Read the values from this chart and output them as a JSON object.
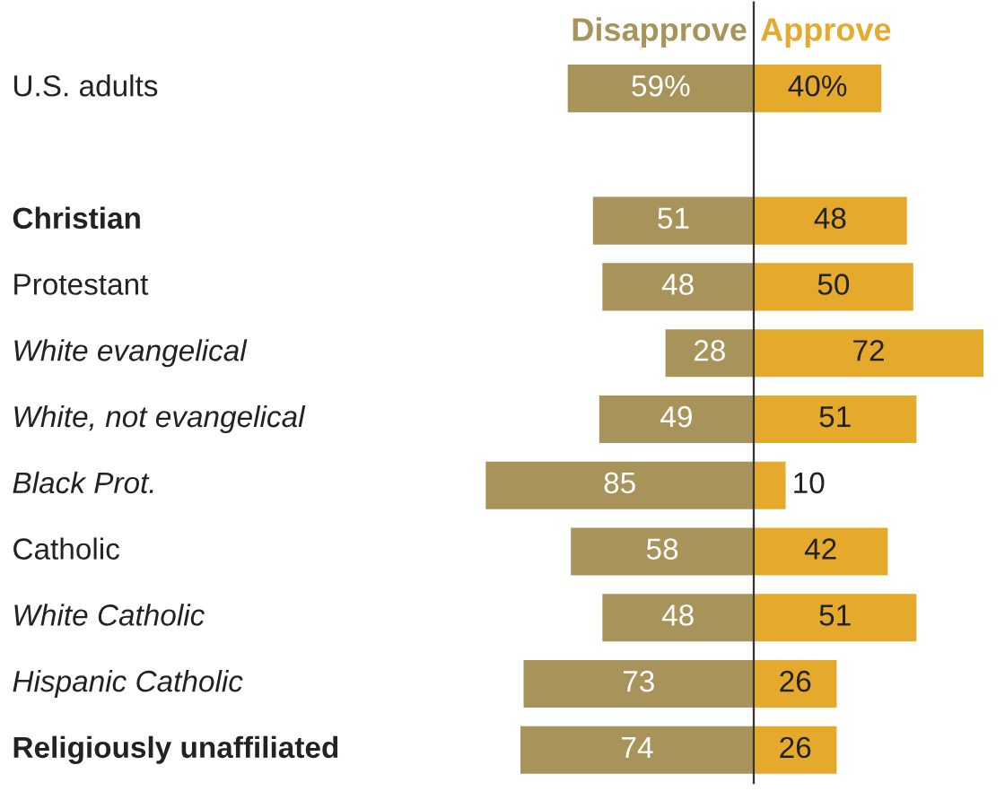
{
  "chart_data": [
    {
      "type": "bar",
      "orientation": "horizontal",
      "tick_labels": "y",
      "legend": "top",
      "categories": [
        "U.S. adults",
        null,
        "Christian",
        "Protestant",
        "White evangelical",
        "White, not evangelical",
        "Black Prot.",
        "Catholic",
        "White Catholic",
        "Hispanic Catholic",
        "Religiously unaffiliated"
      ],
      "series": [
        {
          "name": "Disapprove",
          "color": "#a8935a",
          "values": [
            59,
            null,
            51,
            48,
            28,
            49,
            85,
            58,
            48,
            73,
            74
          ],
          "value_labels": [
            "59%",
            null,
            "51",
            "48",
            "28",
            "49",
            "85",
            "58",
            "48",
            "73",
            "74"
          ]
        }
      ]
    },
    {
      "type": "bar",
      "orientation": "horizontal",
      "tick_labels": false,
      "legend": "top",
      "series": [
        {
          "name": "Approve",
          "color": "#e5aa2b",
          "values": [
            40,
            null,
            48,
            50,
            72,
            51,
            10,
            42,
            51,
            26,
            26
          ],
          "value_labels": [
            "40%",
            null,
            "48",
            "50",
            "72",
            "51",
            "10",
            "42",
            "51",
            "26",
            "26"
          ]
        }
      ]
    }
  ]
}
